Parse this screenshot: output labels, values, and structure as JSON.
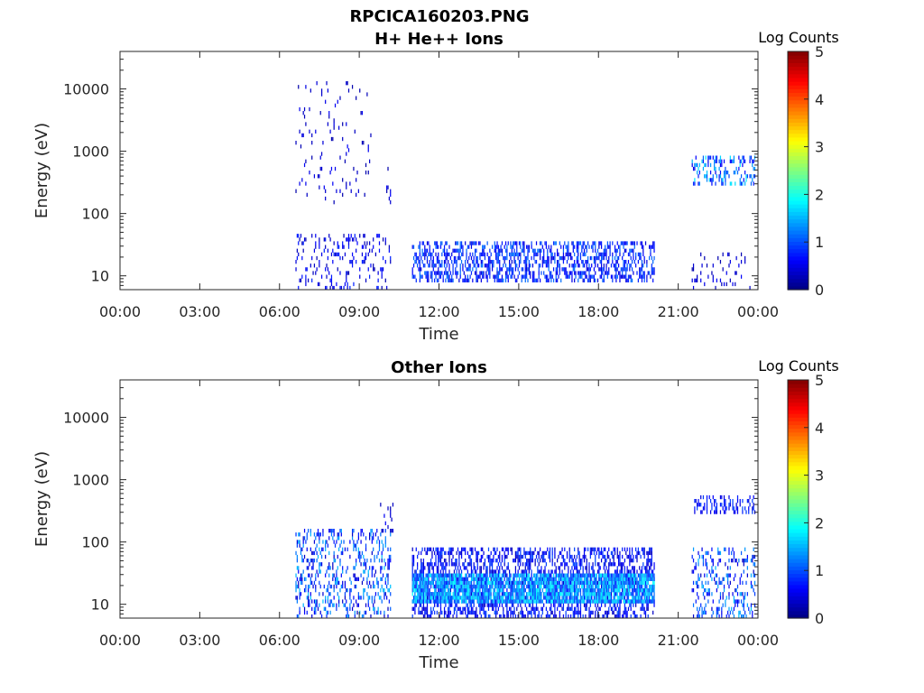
{
  "figure": {
    "title": "RPCICA160203.PNG"
  },
  "chart_data": [
    {
      "type": "heatmap",
      "title": "H+ He++ Ions",
      "xlabel": "Time",
      "ylabel": "Energy (eV)",
      "x_ticks": [
        "00:00",
        "03:00",
        "06:00",
        "09:00",
        "12:00",
        "15:00",
        "18:00",
        "21:00",
        "00:00"
      ],
      "xlim_hours": [
        0,
        24
      ],
      "y_scale": "log",
      "y_ticks": [
        {
          "value": 10,
          "label": "10"
        },
        {
          "value": 100,
          "label": "100"
        },
        {
          "value": 1000,
          "label": "1000"
        },
        {
          "value": 10000,
          "label": "10000"
        }
      ],
      "ylim": [
        6,
        40000
      ],
      "colorbar": {
        "label": "Log Counts",
        "range": [
          0,
          5
        ],
        "ticks": [
          "0",
          "1",
          "2",
          "3",
          "4",
          "5"
        ],
        "colormap": "jet"
      },
      "regions": [
        {
          "t_start": 6.6,
          "t_end": 9.5,
          "e_min": 150,
          "e_max": 13000,
          "density": 0.05,
          "level": [
            0.2,
            0.6
          ]
        },
        {
          "t_start": 6.6,
          "t_end": 10.2,
          "e_min": 6,
          "e_max": 45,
          "density": 0.16,
          "level": [
            0.2,
            0.8
          ]
        },
        {
          "t_start": 10.0,
          "t_end": 10.3,
          "e_min": 100,
          "e_max": 600,
          "density": 0.1,
          "level": [
            0.2,
            0.6
          ]
        },
        {
          "t_start": 11.0,
          "t_end": 20.1,
          "e_min": 8,
          "e_max": 35,
          "density": 0.45,
          "level": [
            0.4,
            1.2
          ]
        },
        {
          "t_start": 21.5,
          "t_end": 23.9,
          "e_min": 280,
          "e_max": 900,
          "density": 0.3,
          "level": [
            0.5,
            1.8
          ]
        },
        {
          "t_start": 21.5,
          "t_end": 23.9,
          "e_min": 6,
          "e_max": 25,
          "density": 0.1,
          "level": [
            0.2,
            0.6
          ]
        }
      ]
    },
    {
      "type": "heatmap",
      "title": "Other Ions",
      "xlabel": "Time",
      "ylabel": "Energy (eV)",
      "x_ticks": [
        "00:00",
        "03:00",
        "06:00",
        "09:00",
        "12:00",
        "15:00",
        "18:00",
        "21:00",
        "00:00"
      ],
      "xlim_hours": [
        0,
        24
      ],
      "y_scale": "log",
      "y_ticks": [
        {
          "value": 10,
          "label": "10"
        },
        {
          "value": 100,
          "label": "100"
        },
        {
          "value": 1000,
          "label": "1000"
        },
        {
          "value": 10000,
          "label": "10000"
        }
      ],
      "ylim": [
        6,
        40000
      ],
      "colorbar": {
        "label": "Log Counts",
        "range": [
          0,
          5
        ],
        "ticks": [
          "0",
          "1",
          "2",
          "3",
          "4",
          "5"
        ],
        "colormap": "jet"
      },
      "regions": [
        {
          "t_start": 6.6,
          "t_end": 10.2,
          "e_min": 6,
          "e_max": 160,
          "density": 0.28,
          "level": [
            0.3,
            1.6
          ]
        },
        {
          "t_start": 9.8,
          "t_end": 10.3,
          "e_min": 150,
          "e_max": 450,
          "density": 0.12,
          "level": [
            0.2,
            0.6
          ]
        },
        {
          "t_start": 11.0,
          "t_end": 20.1,
          "e_min": 6,
          "e_max": 80,
          "density": 0.45,
          "level": [
            0.3,
            1.0
          ]
        },
        {
          "t_start": 11.0,
          "t_end": 20.1,
          "e_min": 10,
          "e_max": 30,
          "density": 0.85,
          "level": [
            0.8,
            1.9
          ]
        },
        {
          "t_start": 21.6,
          "t_end": 23.9,
          "e_min": 300,
          "e_max": 550,
          "density": 0.35,
          "level": [
            0.4,
            1.0
          ]
        },
        {
          "t_start": 21.5,
          "t_end": 23.9,
          "e_min": 6,
          "e_max": 80,
          "density": 0.25,
          "level": [
            0.3,
            1.6
          ]
        }
      ]
    }
  ]
}
